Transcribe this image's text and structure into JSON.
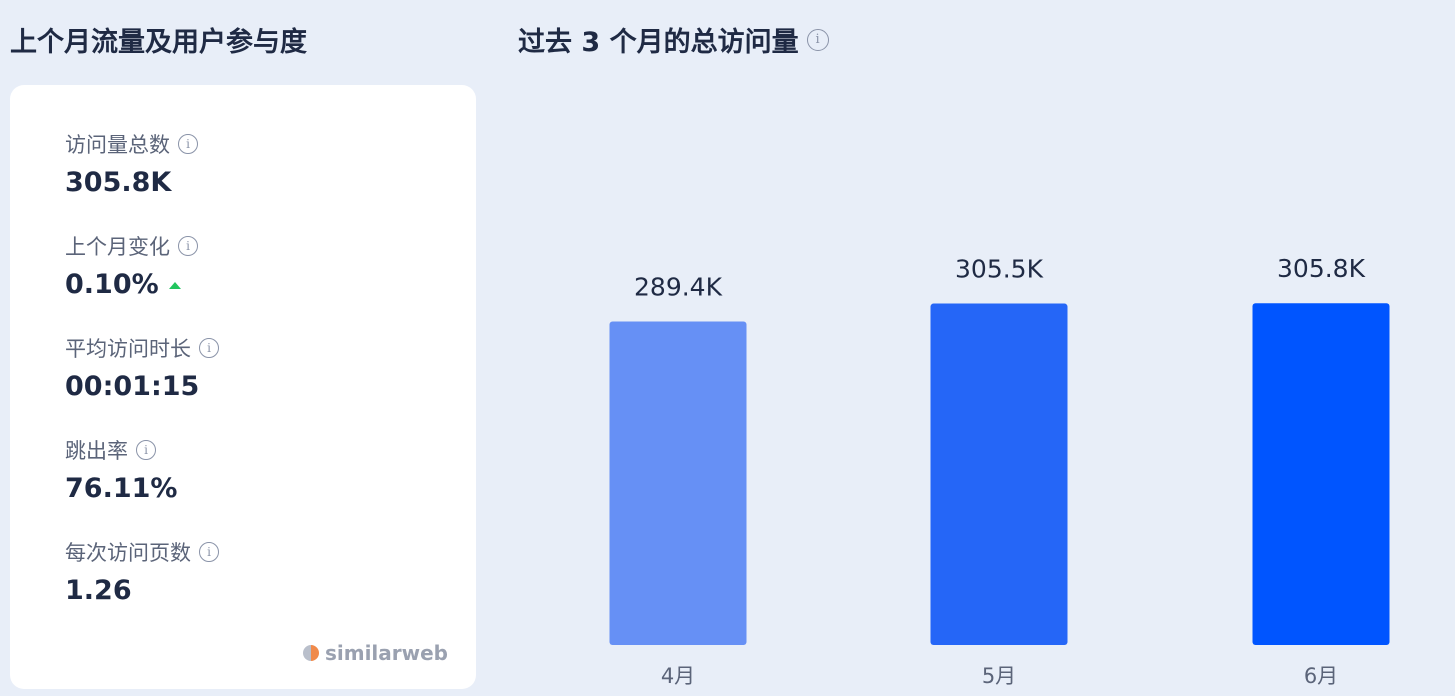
{
  "left_panel": {
    "title": "上个月流量及用户参与度",
    "metrics": [
      {
        "label": "访问量总数",
        "value": "305.8K"
      },
      {
        "label": "上个月变化",
        "value": "0.10%",
        "trend": "up"
      },
      {
        "label": "平均访问时长",
        "value": "00:01:15"
      },
      {
        "label": "跳出率",
        "value": "76.11%"
      },
      {
        "label": "每次访问页数",
        "value": "1.26"
      }
    ],
    "brand": "similarweb",
    "info_icon": "i"
  },
  "chart_data": {
    "type": "bar",
    "title": "过去 3 个月的总访问量",
    "categories": [
      "4月",
      "5月",
      "6月"
    ],
    "values": [
      289.4,
      305.5,
      305.8
    ],
    "value_labels": [
      "289.4K",
      "305.5K",
      "305.8K"
    ],
    "bar_colors": [
      "#6690f5",
      "#2566f7",
      "#0055ff"
    ],
    "grid": false,
    "legend": "none",
    "ylim": [
      0,
      340
    ]
  },
  "colors": {
    "background": "#e8eef8",
    "card": "#ffffff",
    "text_primary": "#1f2a44",
    "text_secondary": "#5b6479",
    "trend_up": "#22c55e"
  }
}
